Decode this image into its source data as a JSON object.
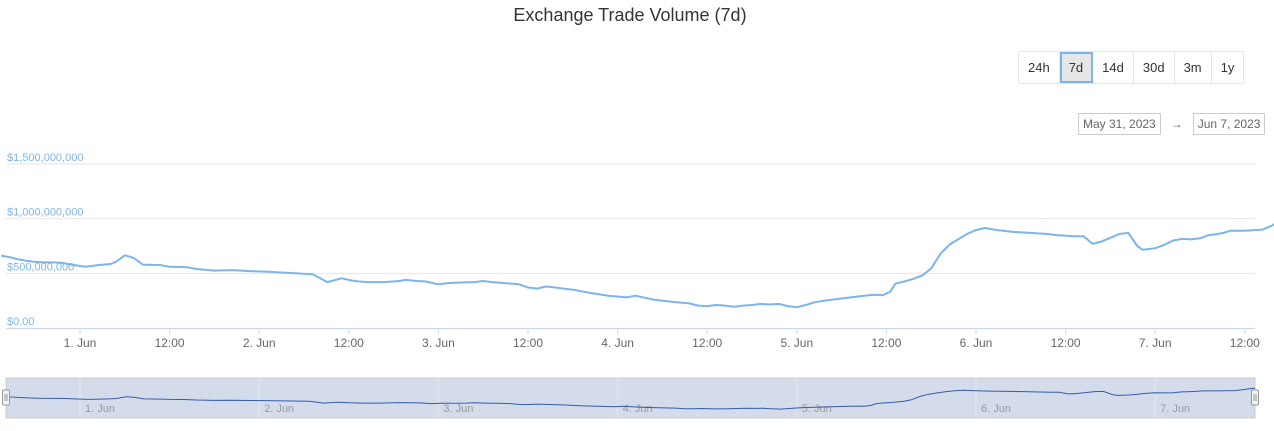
{
  "title": "Exchange Trade Volume (7d)",
  "range_selector": {
    "buttons": [
      "24h",
      "7d",
      "14d",
      "30d",
      "3m",
      "1y"
    ],
    "selected": "7d"
  },
  "date_range": {
    "from": "May 31, 2023",
    "arrow": "→",
    "to": "Jun 7, 2023"
  },
  "colors": {
    "line": "#7cb5ec",
    "nav_line": "#335cad",
    "nav_fill": "#d4dcec",
    "axis_label": "#7cb5ec",
    "grid": "#e6e6e6"
  },
  "chart_data": {
    "type": "line",
    "title": "Exchange Trade Volume (7d)",
    "xlabel": "",
    "ylabel": "",
    "ylim": [
      0,
      1500000000
    ],
    "y_ticks": [
      {
        "value": 0,
        "label": "$0.00"
      },
      {
        "value": 500000000,
        "label": "$500,000,000"
      },
      {
        "value": 1000000000,
        "label": "$1,000,000,000"
      },
      {
        "value": 1500000000,
        "label": "$1,500,000,000"
      }
    ],
    "x_ticks": [
      {
        "day": 1.0,
        "label": "1. Jun"
      },
      {
        "day": 1.5,
        "label": "12:00"
      },
      {
        "day": 2.0,
        "label": "2. Jun"
      },
      {
        "day": 2.5,
        "label": "12:00"
      },
      {
        "day": 3.0,
        "label": "3. Jun"
      },
      {
        "day": 3.5,
        "label": "12:00"
      },
      {
        "day": 4.0,
        "label": "4. Jun"
      },
      {
        "day": 4.5,
        "label": "12:00"
      },
      {
        "day": 5.0,
        "label": "5. Jun"
      },
      {
        "day": 5.5,
        "label": "12:00"
      },
      {
        "day": 6.0,
        "label": "6. Jun"
      },
      {
        "day": 6.5,
        "label": "12:00"
      },
      {
        "day": 7.0,
        "label": "7. Jun"
      },
      {
        "day": 7.5,
        "label": "12:00"
      }
    ],
    "navigator_ticks": [
      "1. Jun",
      "2. Jun",
      "3. Jun",
      "4. Jun",
      "5. Jun",
      "6. Jun",
      "7. Jun"
    ],
    "x_unit": "days of June 2023",
    "grid": true,
    "series": [
      {
        "points": [
          [
            0.56,
            660000000
          ],
          [
            0.6,
            650000000
          ],
          [
            0.65,
            630000000
          ],
          [
            0.7,
            615000000
          ],
          [
            0.75,
            605000000
          ],
          [
            0.8,
            600000000
          ],
          [
            0.85,
            600000000
          ],
          [
            0.9,
            595000000
          ],
          [
            0.95,
            580000000
          ],
          [
            1.03,
            560000000
          ],
          [
            1.1,
            575000000
          ],
          [
            1.17,
            585000000
          ],
          [
            1.2,
            605000000
          ],
          [
            1.25,
            665000000
          ],
          [
            1.3,
            640000000
          ],
          [
            1.35,
            580000000
          ],
          [
            1.45,
            575000000
          ],
          [
            1.5,
            560000000
          ],
          [
            1.6,
            555000000
          ],
          [
            1.65,
            540000000
          ],
          [
            1.75,
            525000000
          ],
          [
            1.85,
            530000000
          ],
          [
            1.95,
            520000000
          ],
          [
            2.05,
            515000000
          ],
          [
            2.15,
            505000000
          ],
          [
            2.2,
            500000000
          ],
          [
            2.3,
            490000000
          ],
          [
            2.38,
            420000000
          ],
          [
            2.46,
            455000000
          ],
          [
            2.53,
            430000000
          ],
          [
            2.6,
            420000000
          ],
          [
            2.7,
            420000000
          ],
          [
            2.78,
            430000000
          ],
          [
            2.82,
            440000000
          ],
          [
            2.88,
            430000000
          ],
          [
            2.93,
            425000000
          ],
          [
            3.0,
            400000000
          ],
          [
            3.05,
            410000000
          ],
          [
            3.1,
            415000000
          ],
          [
            3.2,
            420000000
          ],
          [
            3.25,
            430000000
          ],
          [
            3.3,
            420000000
          ],
          [
            3.38,
            410000000
          ],
          [
            3.45,
            400000000
          ],
          [
            3.5,
            370000000
          ],
          [
            3.55,
            360000000
          ],
          [
            3.6,
            380000000
          ],
          [
            3.65,
            370000000
          ],
          [
            3.75,
            350000000
          ],
          [
            3.85,
            320000000
          ],
          [
            3.95,
            295000000
          ],
          [
            4.05,
            280000000
          ],
          [
            4.1,
            295000000
          ],
          [
            4.2,
            260000000
          ],
          [
            4.3,
            240000000
          ],
          [
            4.4,
            225000000
          ],
          [
            4.45,
            205000000
          ],
          [
            4.5,
            200000000
          ],
          [
            4.55,
            210000000
          ],
          [
            4.6,
            205000000
          ],
          [
            4.65,
            195000000
          ],
          [
            4.7,
            205000000
          ],
          [
            4.75,
            210000000
          ],
          [
            4.8,
            220000000
          ],
          [
            4.85,
            215000000
          ],
          [
            4.9,
            220000000
          ],
          [
            4.95,
            200000000
          ],
          [
            5.0,
            190000000
          ],
          [
            5.05,
            210000000
          ],
          [
            5.1,
            235000000
          ],
          [
            5.15,
            250000000
          ],
          [
            5.2,
            260000000
          ],
          [
            5.3,
            280000000
          ],
          [
            5.4,
            300000000
          ],
          [
            5.45,
            305000000
          ],
          [
            5.48,
            300000000
          ],
          [
            5.52,
            330000000
          ],
          [
            5.55,
            405000000
          ],
          [
            5.6,
            425000000
          ],
          [
            5.65,
            450000000
          ],
          [
            5.7,
            480000000
          ],
          [
            5.75,
            545000000
          ],
          [
            5.8,
            675000000
          ],
          [
            5.85,
            760000000
          ],
          [
            5.9,
            810000000
          ],
          [
            5.95,
            860000000
          ],
          [
            6.0,
            895000000
          ],
          [
            6.05,
            915000000
          ],
          [
            6.12,
            895000000
          ],
          [
            6.2,
            880000000
          ],
          [
            6.3,
            870000000
          ],
          [
            6.4,
            860000000
          ],
          [
            6.45,
            850000000
          ],
          [
            6.55,
            840000000
          ],
          [
            6.6,
            840000000
          ],
          [
            6.65,
            770000000
          ],
          [
            6.7,
            790000000
          ],
          [
            6.8,
            860000000
          ],
          [
            6.85,
            870000000
          ],
          [
            6.9,
            750000000
          ],
          [
            6.93,
            715000000
          ],
          [
            7.0,
            730000000
          ],
          [
            7.05,
            760000000
          ],
          [
            7.1,
            800000000
          ],
          [
            7.15,
            815000000
          ],
          [
            7.2,
            810000000
          ],
          [
            7.25,
            820000000
          ],
          [
            7.3,
            850000000
          ],
          [
            7.35,
            860000000
          ],
          [
            7.38,
            870000000
          ],
          [
            7.42,
            890000000
          ],
          [
            7.5,
            890000000
          ],
          [
            7.55,
            895000000
          ],
          [
            7.6,
            900000000
          ],
          [
            7.65,
            935000000
          ],
          [
            7.68,
            965000000
          ],
          [
            7.72,
            990000000
          ]
        ]
      }
    ]
  }
}
